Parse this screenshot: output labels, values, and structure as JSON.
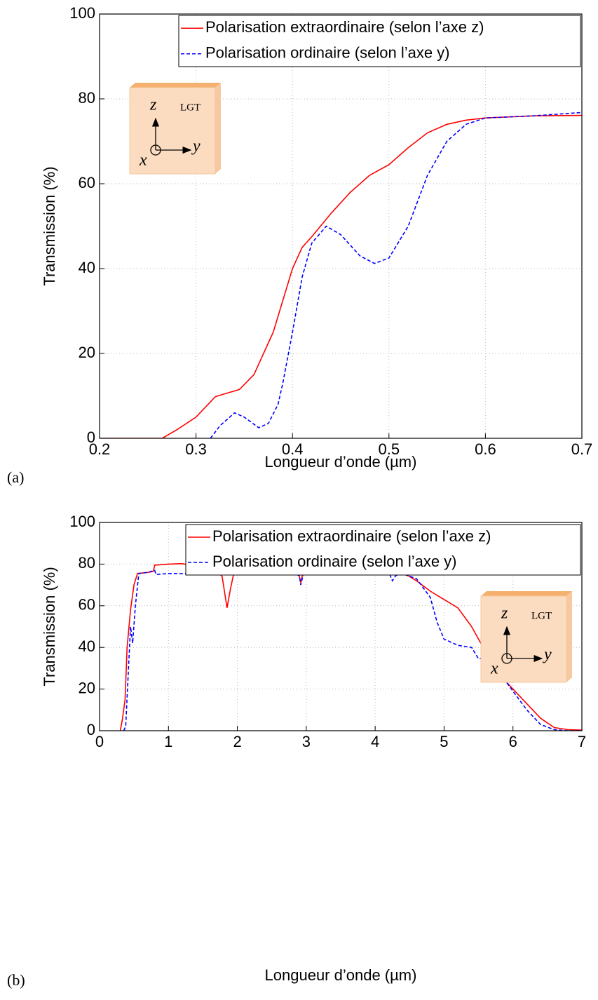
{
  "chart_data": [
    {
      "type": "line",
      "panel_label": "(a)",
      "xlabel": "Longueur d’onde (µm)",
      "ylabel": "Transmission (%)",
      "xlim": [
        0.2,
        0.7
      ],
      "xticks": [
        0.2,
        0.3,
        0.4,
        0.5,
        0.6,
        0.7
      ],
      "ylim": [
        0,
        100
      ],
      "yticks": [
        0,
        20,
        40,
        60,
        80,
        100
      ],
      "grid": true,
      "legend": "upper right",
      "inset_labels": [
        "LGT",
        "z",
        "x",
        "y"
      ],
      "series": [
        {
          "name": "Polarisation extraordinaire (selon l’axe z)",
          "color": "#ff0000",
          "linestyle": "solid",
          "x": [
            0.2,
            0.265,
            0.28,
            0.3,
            0.32,
            0.33,
            0.345,
            0.36,
            0.38,
            0.4,
            0.41,
            0.42,
            0.44,
            0.46,
            0.48,
            0.5,
            0.52,
            0.54,
            0.56,
            0.58,
            0.6,
            0.65,
            0.7
          ],
          "values": [
            0,
            0,
            2,
            5,
            9.8,
            10.5,
            11.5,
            15,
            25,
            40,
            45,
            47.5,
            53,
            58,
            62,
            64.5,
            68.5,
            72,
            74,
            75,
            75.5,
            76,
            76.1
          ]
        },
        {
          "name": "Polarisation ordinaire (selon l’axe y)",
          "color": "#0000ff",
          "linestyle": "dashed",
          "x": [
            0.315,
            0.325,
            0.34,
            0.35,
            0.365,
            0.375,
            0.385,
            0.39,
            0.4,
            0.41,
            0.42,
            0.435,
            0.45,
            0.47,
            0.485,
            0.5,
            0.52,
            0.54,
            0.56,
            0.58,
            0.6,
            0.65,
            0.7
          ],
          "values": [
            0,
            3,
            6,
            5,
            2.5,
            3.5,
            8,
            13,
            25,
            38,
            46,
            50,
            48,
            43,
            41.2,
            42.5,
            50,
            62,
            70,
            74,
            75.5,
            76,
            76.8
          ]
        }
      ]
    },
    {
      "type": "line",
      "panel_label": "(b)",
      "xlabel": "Longueur d’onde (µm)",
      "ylabel": "Transmission (%)",
      "xlim": [
        0,
        7
      ],
      "xticks": [
        0,
        1,
        2,
        3,
        4,
        5,
        6,
        7
      ],
      "ylim": [
        0,
        100
      ],
      "yticks": [
        0,
        20,
        40,
        60,
        80,
        100
      ],
      "grid": true,
      "legend": "upper right",
      "inset_labels": [
        "LGT",
        "z",
        "x",
        "y"
      ],
      "series": [
        {
          "name": "Polarisation extraordinaire (selon l’axe z)",
          "color": "#ff0000",
          "linestyle": "solid",
          "x": [
            0.3,
            0.33,
            0.37,
            0.4,
            0.45,
            0.5,
            0.55,
            0.7,
            0.78,
            0.8,
            1.0,
            1.2,
            1.4,
            1.5,
            1.6,
            1.7,
            1.78,
            1.85,
            1.9,
            1.95,
            2.0,
            2.2,
            2.5,
            2.8,
            2.88,
            2.92,
            2.96,
            3.0,
            3.5,
            4.0,
            4.2,
            4.4,
            4.6,
            4.8,
            5.0,
            5.2,
            5.4,
            5.6,
            5.8,
            6.0,
            6.2,
            6.4,
            6.6,
            6.8,
            7.0
          ],
          "values": [
            0,
            5,
            15,
            40,
            58,
            70,
            75.5,
            76,
            76.5,
            79.5,
            80,
            80.2,
            79,
            78.3,
            78.7,
            77,
            74,
            59,
            68,
            76,
            77.5,
            78.2,
            78,
            77.5,
            77,
            71,
            77,
            77.3,
            78,
            78,
            77.8,
            76,
            72,
            67,
            63,
            59,
            50,
            38,
            27,
            20,
            13,
            6,
            1.5,
            0.5,
            0.3
          ]
        },
        {
          "name": "Polarisation ordinaire (selon l’axe y)",
          "color": "#0000ff",
          "linestyle": "dashed",
          "x": [
            0.35,
            0.38,
            0.42,
            0.45,
            0.48,
            0.52,
            0.57,
            0.7,
            0.8,
            0.82,
            1.0,
            1.5,
            1.7,
            1.85,
            2.0,
            2.4,
            2.6,
            2.8,
            2.9,
            2.92,
            2.96,
            3.2,
            3.6,
            4.0,
            4.2,
            4.25,
            4.3,
            4.4,
            4.6,
            4.8,
            4.9,
            5.0,
            5.2,
            5.4,
            5.5,
            5.6,
            5.7,
            5.8,
            6.0,
            6.2,
            6.4,
            6.6,
            6.8,
            7.0
          ],
          "values": [
            0,
            2,
            30,
            50,
            42,
            60,
            75.5,
            76,
            77,
            75,
            75.5,
            75.3,
            74.8,
            75,
            76.5,
            77,
            76.5,
            75.5,
            74.5,
            70,
            75.5,
            76.5,
            76.5,
            76.5,
            76,
            72,
            74.5,
            75.3,
            73,
            64,
            52,
            44,
            41,
            40,
            34.5,
            35,
            33,
            28,
            19,
            10,
            3,
            0.5,
            0,
            0
          ]
        }
      ]
    }
  ]
}
